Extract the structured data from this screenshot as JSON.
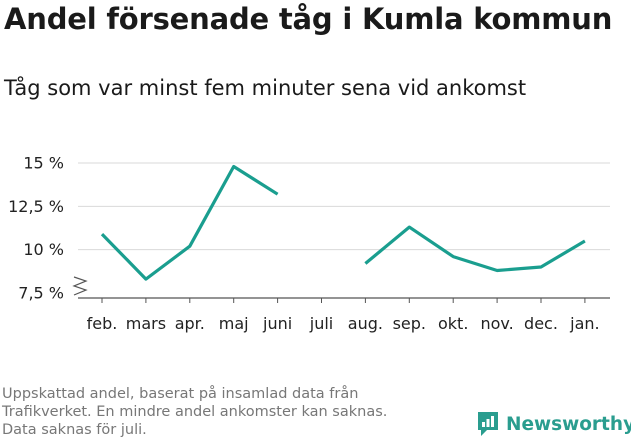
{
  "header": {
    "title": "Andel försenade tåg i Kumla kommun",
    "subtitle": "Tåg som var minst fem minuter sena vid ankomst"
  },
  "footnote": {
    "line1": "Uppskattad andel, baserat på insamlad data från",
    "line2": "Trafikverket. En mindre andel ankomster kan saknas.",
    "line3": "Data saknas för juli."
  },
  "brand": {
    "name": "Newsworthy",
    "logo_icon": "newsworthy-logo-icon"
  },
  "colors": {
    "line": "#1a9e8f",
    "grid": "#d9d9d9",
    "axis": "#555555",
    "brand": "#2a9d8f"
  },
  "chart_data": {
    "type": "line",
    "title": "Andel försenade tåg i Kumla kommun",
    "subtitle": "Tåg som var minst fem minuter sena vid ankomst",
    "categories": [
      "feb.",
      "mars",
      "apr.",
      "maj",
      "juni",
      "juli",
      "aug.",
      "sep.",
      "okt.",
      "nov.",
      "dec.",
      "jan."
    ],
    "series": [
      {
        "values": [
          10.9,
          8.3,
          10.2,
          14.8,
          13.2,
          null,
          9.2,
          11.3,
          9.6,
          8.8,
          9.0,
          10.5
        ]
      }
    ],
    "y_ticks": [
      {
        "value": 7.5,
        "label": "7,5 %"
      },
      {
        "value": 10,
        "label": "10 %"
      },
      {
        "value": 12.5,
        "label": "12,5 %"
      },
      {
        "value": 15,
        "label": "15 %"
      }
    ],
    "ylim": [
      7.5,
      15
    ],
    "y_axis_break": true,
    "grid": "horizontal",
    "legend": "none"
  }
}
